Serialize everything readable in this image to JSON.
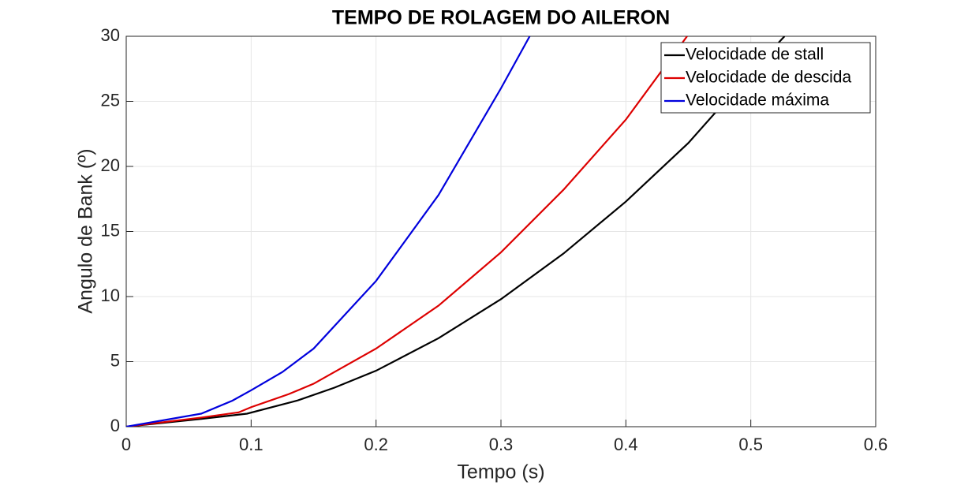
{
  "chart_data": {
    "type": "line",
    "title": "TEMPO DE ROLAGEM DO AILERON",
    "x_label": "Tempo (s)",
    "y_label": "Angulo de Bank (º)",
    "xlim": [
      0,
      0.6
    ],
    "xticks": [
      0,
      0.1,
      0.2,
      0.3,
      0.4,
      0.5,
      0.6
    ],
    "ylim": [
      0,
      30
    ],
    "yticks": [
      0,
      5,
      10,
      15,
      20,
      25,
      30
    ],
    "grid": true,
    "legend": "northeast",
    "series": [
      {
        "name": "Velocidade de stall",
        "color": "#000000",
        "x": [
          0,
          0.06,
          0.0967,
          0.1367,
          0.1667,
          0.2,
          0.25,
          0.3,
          0.35,
          0.4,
          0.45,
          0.5,
          0.527
        ],
        "values": [
          0,
          0.6,
          1.0,
          2.0,
          3.0,
          4.3,
          6.8,
          9.8,
          13.3,
          17.3,
          21.8,
          27.2,
          30
        ]
      },
      {
        "name": "Velocidade de descida",
        "color": "#dd0000",
        "x": [
          0,
          0.06,
          0.09,
          0.1,
          0.13,
          0.15,
          0.2,
          0.25,
          0.3,
          0.35,
          0.4,
          0.449
        ],
        "values": [
          0,
          0.7,
          1.1,
          1.5,
          2.5,
          3.3,
          6.0,
          9.3,
          13.4,
          18.2,
          23.6,
          30
        ]
      },
      {
        "name": "Velocidade máxima",
        "color": "#0000dd",
        "x": [
          0,
          0.06,
          0.085,
          0.1,
          0.125,
          0.15,
          0.2,
          0.25,
          0.3,
          0.323
        ],
        "values": [
          0,
          1.0,
          2.0,
          2.8,
          4.2,
          6.0,
          11.2,
          17.8,
          26.0,
          30
        ]
      }
    ]
  }
}
